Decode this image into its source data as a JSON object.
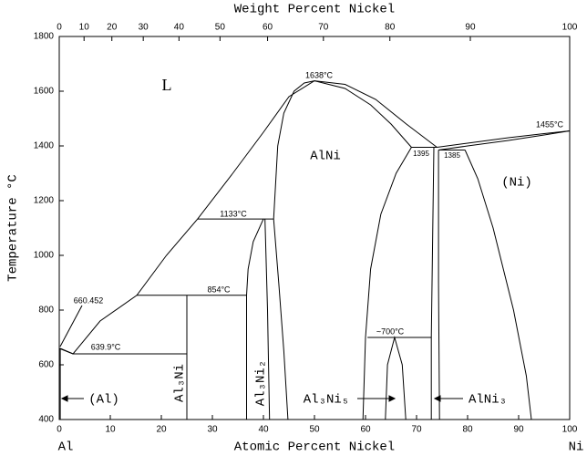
{
  "chart_data": {
    "type": "phase-diagram",
    "x_label": "Atomic Percent Nickel",
    "x2_label": "Weight Percent Nickel",
    "y_label": "Temperature °C",
    "x_left_label": "Al",
    "x_right_label": "Ni",
    "xlim": [
      0,
      100
    ],
    "xticks": [
      0,
      10,
      20,
      30,
      40,
      50,
      60,
      70,
      80,
      90,
      100
    ],
    "x2ticks": [
      0,
      10,
      20,
      30,
      40,
      50,
      60,
      70,
      80,
      90,
      100
    ],
    "ylim": [
      400,
      1800
    ],
    "yticks": [
      400,
      600,
      800,
      1000,
      1200,
      1400,
      1600,
      1800
    ],
    "grid": false,
    "series": [
      {
        "color": "#000000",
        "x": [
          0,
          2.7,
          8,
          15.2,
          21,
          27.1,
          34,
          40,
          45,
          50
        ],
        "values": [
          660,
          640,
          760,
          854,
          1000,
          1133,
          1300,
          1450,
          1580,
          1638
        ]
      },
      {
        "color": "#000000",
        "x": [
          50,
          56,
          62,
          68,
          74
        ],
        "values": [
          1638,
          1625,
          1570,
          1480,
          1395
        ]
      },
      {
        "color": "#000000",
        "x": [
          50,
          56,
          61,
          65,
          69
        ],
        "values": [
          1638,
          1610,
          1550,
          1480,
          1395
        ]
      },
      {
        "color": "#000000",
        "x": [
          69,
          66,
          63,
          61,
          60,
          59.5
        ],
        "values": [
          1395,
          1300,
          1150,
          950,
          700,
          400
        ]
      },
      {
        "color": "#000000",
        "x": [
          42,
          42.8,
          44,
          46,
          48,
          50
        ],
        "values": [
          1133,
          1400,
          1520,
          1600,
          1630,
          1638
        ]
      },
      {
        "color": "#000000",
        "x": [
          42,
          43,
          44,
          44.8
        ],
        "values": [
          1133,
          900,
          650,
          400
        ]
      },
      {
        "color": "#000000",
        "x": [
          40,
          38,
          37,
          36.7,
          36.7
        ],
        "values": [
          1133,
          1050,
          950,
          854,
          400
        ]
      },
      {
        "color": "#000000",
        "x": [
          40.3,
          40.8,
          41.2
        ],
        "values": [
          1133,
          800,
          400
        ]
      },
      {
        "color": "#000000",
        "x": [
          27.1,
          42
        ],
        "values": [
          1133,
          1133
        ]
      },
      {
        "color": "#000000",
        "x": [
          15.2,
          36.7
        ],
        "values": [
          854,
          854
        ]
      },
      {
        "color": "#000000",
        "x": [
          25,
          25
        ],
        "values": [
          854,
          400
        ]
      },
      {
        "color": "#000000",
        "x": [
          2.7,
          25
        ],
        "values": [
          640,
          640
        ]
      },
      {
        "color": "#000000",
        "x": [
          0.2,
          0.2
        ],
        "values": [
          660,
          400
        ]
      },
      {
        "color": "#000000",
        "x": [
          0.2,
          2.7
        ],
        "values": [
          660,
          640
        ]
      },
      {
        "color": "#000000",
        "x": [
          60.4,
          72.9
        ],
        "values": [
          700,
          700
        ]
      },
      {
        "color": "#000000",
        "x": [
          63.9,
          64.3,
          65.7,
          67.2,
          67.9
        ],
        "values": [
          400,
          600,
          700,
          600,
          400
        ]
      },
      {
        "color": "#000000",
        "x": [
          73.4,
          73.1,
          72.9,
          72.9
        ],
        "values": [
          1395,
          1000,
          700,
          400
        ]
      },
      {
        "color": "#000000",
        "x": [
          74.3,
          74.3,
          74.5
        ],
        "values": [
          1385,
          900,
          400
        ]
      },
      {
        "color": "#000000",
        "x": [
          69,
          74
        ],
        "values": [
          1395,
          1395
        ]
      },
      {
        "color": "#000000",
        "x": [
          74.3,
          79.5
        ],
        "values": [
          1385,
          1385
        ]
      },
      {
        "color": "#000000",
        "x": [
          74,
          80,
          88,
          95,
          100
        ],
        "values": [
          1395,
          1410,
          1430,
          1445,
          1455
        ]
      },
      {
        "color": "#000000",
        "x": [
          74.3,
          80,
          88,
          95,
          100
        ],
        "values": [
          1385,
          1400,
          1420,
          1440,
          1455
        ]
      },
      {
        "color": "#000000",
        "x": [
          79.5,
          82,
          85,
          89,
          91.5,
          92.5
        ],
        "values": [
          1385,
          1280,
          1100,
          800,
          560,
          400
        ]
      }
    ],
    "annotations": [
      "L",
      "AlNi",
      "(Ni)",
      "1638°C",
      "1455°C",
      "1395",
      "1385",
      "1133°C",
      "854°C",
      "660.452",
      "639.9°C",
      "~700°C",
      "(Al)",
      "Al₃Ni",
      "Al₃Ni₂",
      "Al₃Ni₅",
      "AlNi₃"
    ]
  }
}
